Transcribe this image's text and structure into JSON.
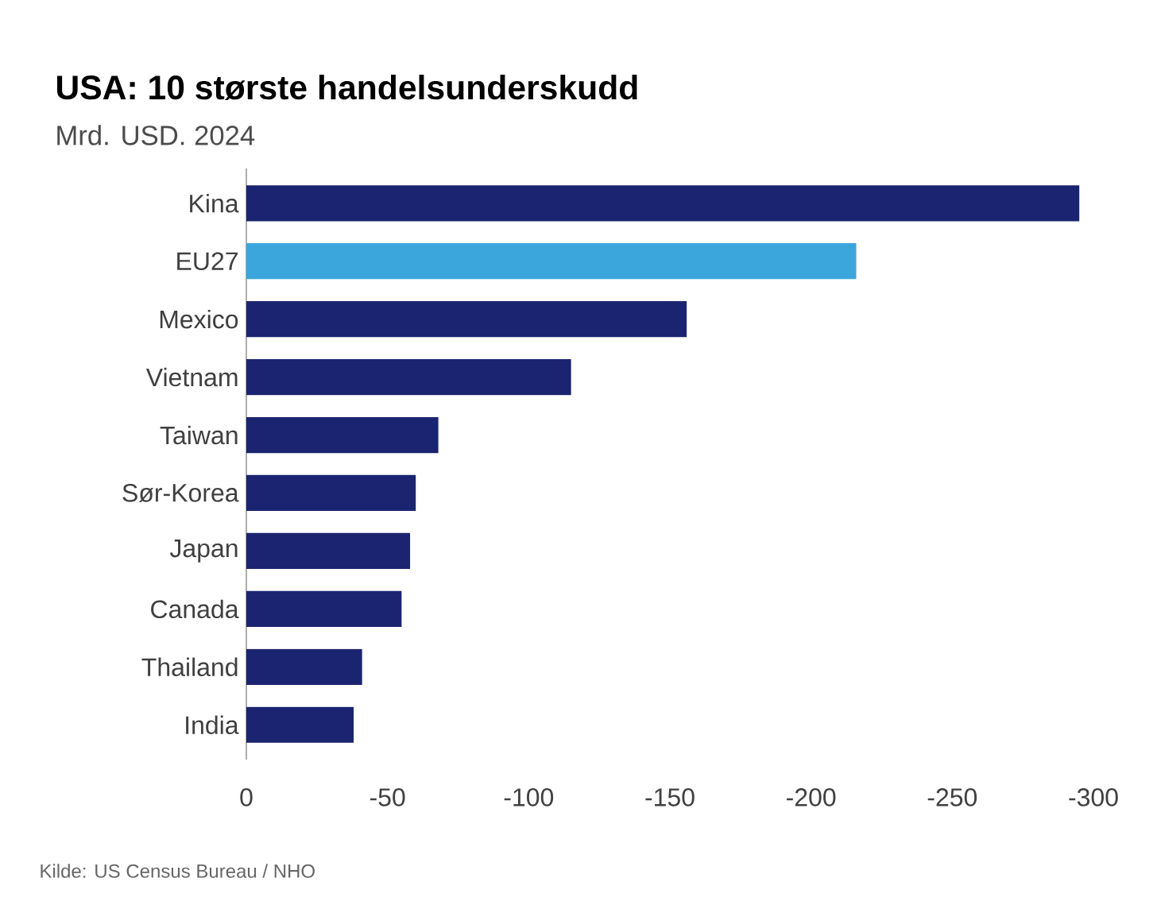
{
  "chart_data": {
    "type": "bar",
    "orientation": "horizontal",
    "title": "USA: 10 største handelsunderskudd",
    "subtitle": "Mrd. USD. 2024",
    "categories": [
      "Kina",
      "EU27",
      "Mexico",
      "Vietnam",
      "Taiwan",
      "Sør-Korea",
      "Japan",
      "Canada",
      "Thailand",
      "India"
    ],
    "values": [
      -295,
      -216,
      -156,
      -115,
      -68,
      -60,
      -58,
      -55,
      -41,
      -38
    ],
    "colors": [
      "#1b2470",
      "#3ba6dc",
      "#1b2470",
      "#1b2470",
      "#1b2470",
      "#1b2470",
      "#1b2470",
      "#1b2470",
      "#1b2470",
      "#1b2470"
    ],
    "xlim": [
      0,
      -300
    ],
    "xticks": [
      0,
      -50,
      -100,
      -150,
      -200,
      -250,
      -300
    ],
    "annotations": [
      "Kilde: US Census Bureau / NHO"
    ]
  }
}
